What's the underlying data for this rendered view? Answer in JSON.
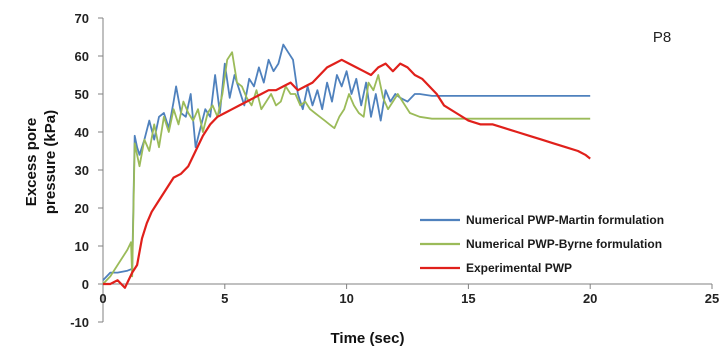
{
  "chart_data": {
    "type": "line",
    "title": "",
    "xlabel": "Time (sec)",
    "ylabel_lines": [
      "Excess pore",
      "pressure (kPa)"
    ],
    "xlim": [
      0,
      25
    ],
    "ylim": [
      -10,
      70
    ],
    "x_ticks": [
      "0",
      "5",
      "10",
      "15",
      "20",
      "25"
    ],
    "y_ticks": [
      "-10",
      "0",
      "10",
      "20",
      "30",
      "40",
      "50",
      "60",
      "70"
    ],
    "grid": false,
    "legend_position": "bottom-right",
    "annotation": "P8",
    "series": [
      {
        "name": "Numerical PWP-Martin formulation",
        "color": "#4F81BD",
        "x": [
          0,
          0.3,
          0.6,
          1.0,
          1.2,
          1.3,
          1.4,
          1.5,
          1.7,
          1.9,
          2.1,
          2.3,
          2.5,
          2.7,
          2.9,
          3.0,
          3.2,
          3.4,
          3.6,
          3.8,
          4.0,
          4.2,
          4.4,
          4.6,
          4.8,
          5.0,
          5.2,
          5.4,
          5.6,
          5.8,
          6.0,
          6.2,
          6.4,
          6.6,
          6.8,
          7.0,
          7.2,
          7.4,
          7.6,
          7.8,
          8.0,
          8.2,
          8.4,
          8.6,
          8.8,
          9.0,
          9.2,
          9.4,
          9.6,
          9.8,
          10.0,
          10.2,
          10.4,
          10.6,
          10.8,
          11.0,
          11.2,
          11.4,
          11.6,
          11.8,
          12.0,
          12.2,
          12.5,
          12.8,
          13.0,
          13.5,
          14.0,
          15.0,
          16.0,
          17.0,
          18.0,
          19.0,
          20.0
        ],
        "values": [
          1,
          3,
          3,
          3.5,
          4,
          39,
          36,
          34,
          38,
          43,
          38,
          44,
          45,
          41,
          48,
          52,
          45,
          44,
          50,
          36,
          41,
          46,
          44,
          55,
          45,
          58,
          49,
          55,
          51,
          47,
          54,
          52,
          57,
          53,
          59,
          56,
          58,
          63,
          61,
          59,
          50,
          46,
          52,
          47,
          51,
          46,
          53,
          48,
          55,
          52,
          56,
          50,
          54,
          47,
          53,
          44,
          50,
          43,
          51,
          48,
          50,
          49,
          48,
          50,
          50,
          49.5,
          49.5,
          49.5,
          49.5,
          49.5,
          49.5,
          49.5,
          49.5
        ]
      },
      {
        "name": "Numerical PWP-Byrne formulation",
        "color": "#9BBB59",
        "x": [
          0,
          0.3,
          0.6,
          1.0,
          1.15,
          1.2,
          1.3,
          1.4,
          1.5,
          1.7,
          1.9,
          2.1,
          2.3,
          2.5,
          2.7,
          2.9,
          3.1,
          3.3,
          3.5,
          3.7,
          3.9,
          4.1,
          4.3,
          4.5,
          4.7,
          4.9,
          5.1,
          5.3,
          5.5,
          5.7,
          5.9,
          6.1,
          6.3,
          6.5,
          6.7,
          6.9,
          7.1,
          7.3,
          7.5,
          7.7,
          7.9,
          8.1,
          8.3,
          8.5,
          8.7,
          8.9,
          9.1,
          9.3,
          9.5,
          9.7,
          9.9,
          10.1,
          10.3,
          10.5,
          10.7,
          10.9,
          11.1,
          11.3,
          11.5,
          11.7,
          11.9,
          12.1,
          12.3,
          12.6,
          13.0,
          13.5,
          14.0,
          15.0,
          16.0,
          17.0,
          18.0,
          19.0,
          20.0
        ],
        "values": [
          0,
          2,
          5,
          9,
          11,
          2,
          37,
          34,
          31,
          38,
          35,
          42,
          36,
          44,
          40,
          46,
          42,
          48,
          45,
          43,
          46,
          40,
          45,
          47,
          44,
          50,
          59,
          61,
          53,
          52,
          49,
          47,
          51,
          46,
          48,
          50,
          47,
          48,
          52,
          50,
          50,
          47,
          48,
          46,
          45,
          44,
          43,
          42,
          41,
          44,
          46,
          50,
          47,
          45,
          44,
          53,
          51,
          55,
          49,
          46,
          48,
          50,
          48,
          45,
          44,
          43.5,
          43.5,
          43.5,
          43.5,
          43.5,
          43.5,
          43.5,
          43.5
        ]
      },
      {
        "name": "Experimental PWP",
        "color": "#E0201B",
        "x": [
          0,
          0.3,
          0.6,
          0.9,
          1.2,
          1.4,
          1.6,
          1.8,
          2.0,
          2.3,
          2.6,
          2.9,
          3.2,
          3.5,
          3.8,
          4.1,
          4.4,
          4.7,
          5.0,
          5.3,
          5.6,
          5.9,
          6.2,
          6.5,
          6.8,
          7.1,
          7.4,
          7.7,
          8.0,
          8.3,
          8.6,
          8.9,
          9.2,
          9.5,
          9.8,
          10.1,
          10.4,
          10.7,
          11.0,
          11.3,
          11.6,
          11.9,
          12.2,
          12.5,
          12.8,
          13.1,
          13.4,
          13.7,
          14.0,
          14.5,
          15.0,
          15.5,
          16.0,
          16.5,
          17.0,
          17.5,
          18.0,
          18.5,
          19.0,
          19.5,
          19.8,
          20.0
        ],
        "values": [
          0,
          0,
          1,
          -1,
          3,
          5,
          12,
          16,
          19,
          22,
          25,
          28,
          29,
          31,
          35,
          39,
          42,
          44,
          45,
          46,
          47,
          48,
          49,
          50,
          51,
          51,
          52,
          53,
          51,
          52,
          53,
          55,
          57,
          58,
          59,
          58,
          57,
          56,
          55,
          57,
          58,
          56,
          58,
          57,
          55,
          54,
          52,
          50,
          47,
          45,
          43,
          42,
          42,
          41,
          40,
          39,
          38,
          37,
          36,
          35,
          34,
          33
        ]
      }
    ]
  }
}
